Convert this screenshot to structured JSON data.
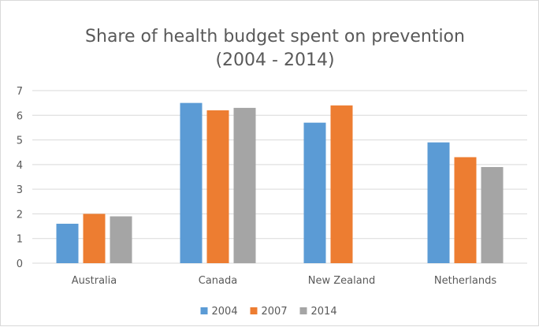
{
  "chart_data": {
    "type": "bar",
    "title": "Share of health budget spent on prevention",
    "subtitle": "(2004 - 2014)",
    "xlabel": "",
    "ylabel": "",
    "categories": [
      "Australia",
      "Canada",
      "New Zealand",
      "Netherlands"
    ],
    "series": [
      {
        "name": "2004",
        "color": "#5b9bd5",
        "values": [
          1.6,
          6.5,
          5.7,
          4.9
        ]
      },
      {
        "name": "2007",
        "color": "#ed7d31",
        "values": [
          2.0,
          6.2,
          6.4,
          4.3
        ]
      },
      {
        "name": "2014",
        "color": "#a5a5a5",
        "values": [
          1.9,
          6.3,
          null,
          3.9
        ]
      }
    ],
    "ylim": [
      0,
      7
    ],
    "yticks": [
      "0",
      "1",
      "2",
      "3",
      "4",
      "5",
      "6",
      "7"
    ],
    "grid": true,
    "legend_position": "bottom",
    "gridline_color": "#d9d9d9"
  }
}
